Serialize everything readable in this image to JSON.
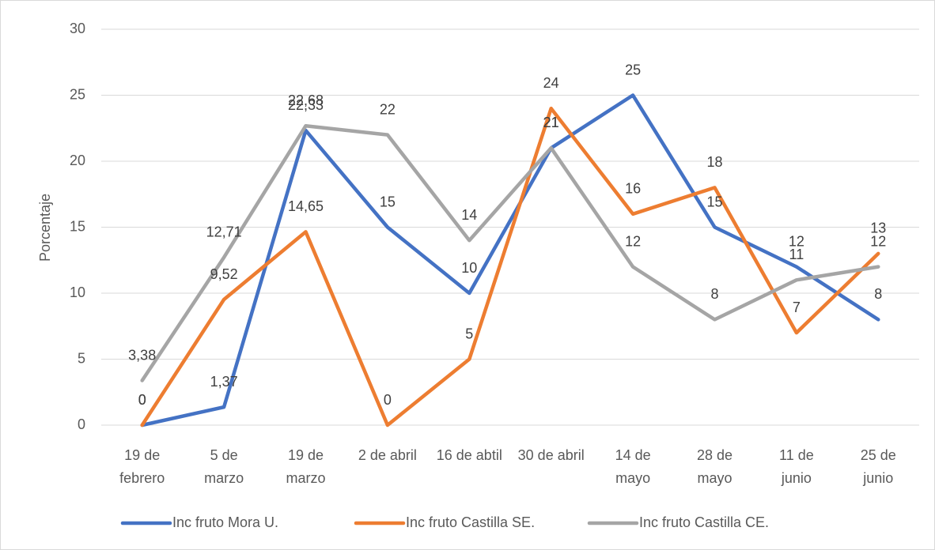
{
  "chart_data": {
    "type": "line",
    "y_label": "Porcentaje",
    "categories": [
      "19 de febrero",
      "5 de marzo",
      "19 de marzo",
      "2 de abril",
      "16 de abtil",
      "30 de abril",
      "14 de mayo",
      "28 de mayo",
      "11 de junio",
      "25 de junio"
    ],
    "series": [
      {
        "name": "Inc fruto Mora U.",
        "color": "#4472c4",
        "values": [
          0,
          1.37,
          22.33,
          15,
          10,
          21,
          25,
          15,
          12,
          8
        ],
        "value_labels": [
          "0",
          "1,37",
          "22,33",
          "15",
          "10",
          "21",
          "25",
          "15",
          "12",
          "8"
        ]
      },
      {
        "name": "Inc fruto Castilla SE.",
        "color": "#ed7d31",
        "values": [
          0,
          9.52,
          14.65,
          0,
          5,
          24,
          16,
          18,
          7,
          13
        ],
        "value_labels": [
          "0",
          "9,52",
          "14,65",
          "0",
          "5",
          "24",
          "16",
          "18",
          "7",
          "13"
        ]
      },
      {
        "name": "Inc fruto Castilla CE.",
        "color": "#a5a5a5",
        "values": [
          3.38,
          12.71,
          22.68,
          22,
          14,
          21,
          12,
          8,
          11,
          12
        ],
        "value_labels": [
          "3,38",
          "12,71",
          "22,68",
          "22",
          "14",
          "21",
          "12",
          "8",
          "11",
          "12"
        ]
      }
    ],
    "ylim": [
      0,
      30
    ],
    "yticks": [
      0,
      5,
      10,
      15,
      20,
      25,
      30
    ],
    "grid": true,
    "legend": "bottom"
  }
}
